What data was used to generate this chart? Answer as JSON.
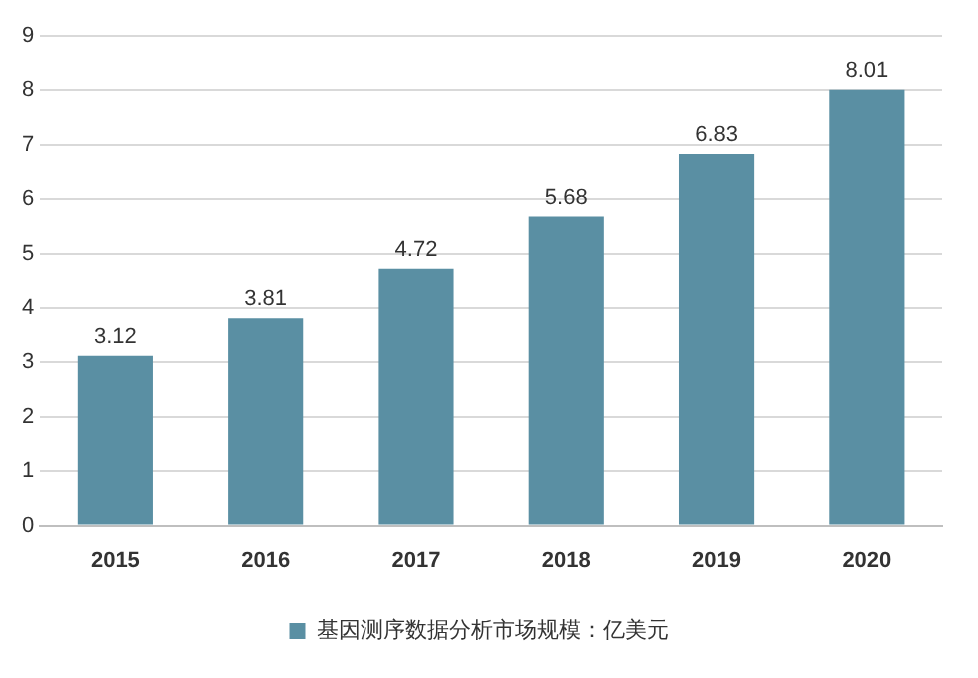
{
  "chart_data": {
    "type": "bar",
    "categories": [
      "2015",
      "2016",
      "2017",
      "2018",
      "2019",
      "2020"
    ],
    "series": [
      {
        "name": "基因测序数据分析市场规模：亿美元",
        "color": "#5a8fa3",
        "values": [
          3.12,
          3.81,
          4.72,
          5.68,
          6.83,
          8.01
        ]
      }
    ],
    "ylim": [
      0,
      9
    ],
    "yticks": [
      0,
      1,
      2,
      3,
      4,
      5,
      6,
      7,
      8,
      9
    ],
    "grid": "y",
    "legend": "bottom",
    "data_labels": true
  }
}
